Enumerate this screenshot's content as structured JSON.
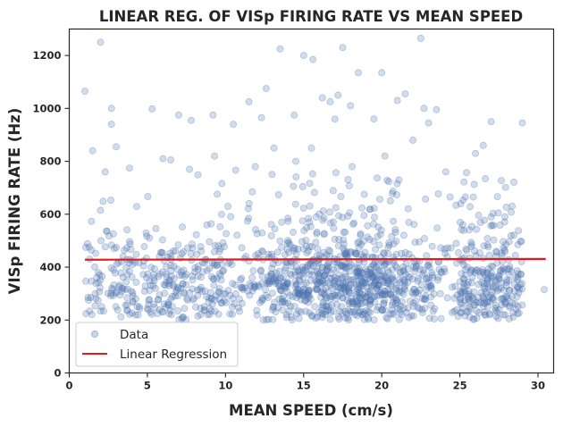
{
  "chart_data": {
    "type": "scatter",
    "title": "LINEAR REG. OF VISp FIRING RATE VS MEAN SPEED",
    "xlabel": "MEAN SPEED (cm/s)",
    "ylabel": "VISp FIRING RATE (Hz)",
    "xlim": [
      0,
      31
    ],
    "ylim": [
      0,
      1300
    ],
    "xticks": [
      0,
      5,
      10,
      15,
      20,
      25,
      30
    ],
    "yticks": [
      0,
      200,
      400,
      600,
      800,
      1000,
      1200
    ],
    "grid": false,
    "legend_position": "lower-left",
    "series": [
      {
        "name": "Data",
        "kind": "scatter",
        "color": "#4c72b0",
        "opacity": 0.25,
        "points": [
          [
            1.0,
            1065
          ],
          [
            2.0,
            1250
          ],
          [
            2.7,
            1000
          ],
          [
            2.7,
            940
          ],
          [
            3.0,
            855
          ],
          [
            5.3,
            998
          ],
          [
            7.0,
            975
          ],
          [
            7.8,
            955
          ],
          [
            9.2,
            975
          ],
          [
            11.5,
            1025
          ],
          [
            12.3,
            965
          ],
          [
            12.6,
            1075
          ],
          [
            13.1,
            850
          ],
          [
            13.5,
            1225
          ],
          [
            14.4,
            975
          ],
          [
            15.0,
            1200
          ],
          [
            15.6,
            1185
          ],
          [
            16.2,
            1040
          ],
          [
            16.7,
            1025
          ],
          [
            17.2,
            1050
          ],
          [
            17.5,
            1230
          ],
          [
            18.0,
            1010
          ],
          [
            18.5,
            1135
          ],
          [
            19.5,
            960
          ],
          [
            20.0,
            1135
          ],
          [
            21.0,
            1030
          ],
          [
            21.5,
            1055
          ],
          [
            22.5,
            1265
          ],
          [
            22.7,
            1000
          ],
          [
            23.0,
            945
          ],
          [
            23.5,
            995
          ],
          [
            26.0,
            830
          ],
          [
            26.5,
            860
          ],
          [
            27.0,
            950
          ],
          [
            29.0,
            945
          ],
          [
            30.4,
            315
          ],
          [
            28.6,
            240
          ],
          [
            28.5,
            310
          ],
          [
            1.5,
            840
          ],
          [
            2.3,
            760
          ],
          [
            6.0,
            810
          ],
          [
            6.5,
            805
          ],
          [
            7.7,
            770
          ],
          [
            9.3,
            820
          ],
          [
            10.5,
            940
          ],
          [
            11.9,
            780
          ],
          [
            14.5,
            800
          ],
          [
            15.5,
            850
          ],
          [
            17.0,
            960
          ],
          [
            18.1,
            780
          ],
          [
            20.2,
            820
          ],
          [
            22.0,
            880
          ],
          [
            24.1,
            760
          ]
        ]
      },
      {
        "name": "Linear Regression",
        "kind": "line",
        "color": "#e41a1c",
        "x": [
          1.0,
          30.5
        ],
        "y": [
          428,
          431
        ]
      }
    ]
  }
}
